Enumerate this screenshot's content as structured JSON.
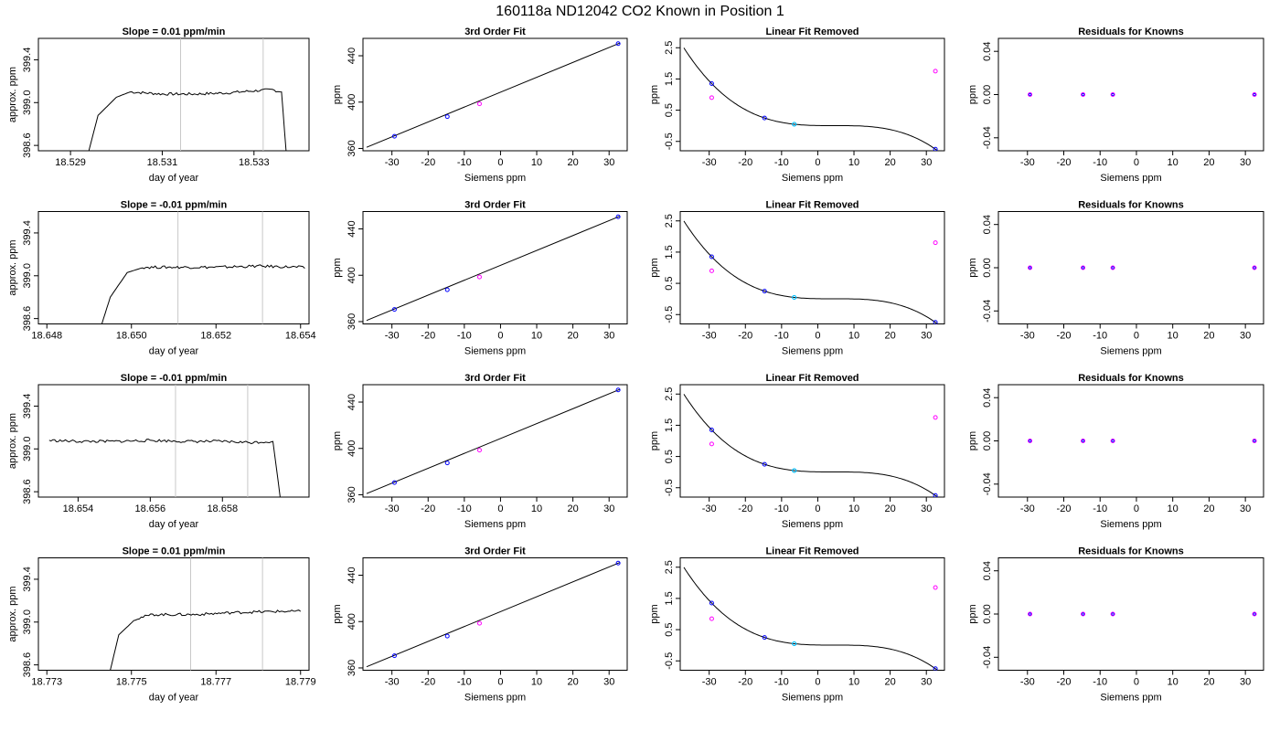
{
  "title": "160118a     ND12042   CO2 Known in Position  1",
  "colors": {
    "trace": "#000000",
    "knowns": "#0000ff",
    "selected": "#00bfff",
    "residual": "#ff00ff",
    "gridline": "#c8c8c8"
  },
  "chart_data": [
    {
      "row": 1,
      "time_series": {
        "type": "line",
        "title": "Slope =  0.01  ppm/min",
        "xlabel": "day of year",
        "ylabel": "approx. ppm",
        "xticks": [
          "18.529",
          "18.531",
          "18.533"
        ],
        "xtick_values": [
          18.529,
          18.531,
          18.533
        ],
        "yticks": [
          "398.6",
          "399.0",
          "399.4"
        ],
        "ytick_values": [
          398.6,
          399.0,
          399.4
        ],
        "xlim": [
          18.5283,
          18.5342
        ],
        "ylim": [
          398.55,
          399.6
        ],
        "vlines": [
          18.5314,
          18.5332
        ],
        "segments": [
          [
            18.5294,
            398.55
          ],
          [
            18.5296,
            398.88
          ],
          [
            18.53,
            399.05
          ],
          [
            18.5303,
            399.1
          ],
          [
            18.531,
            399.08
          ],
          [
            18.5317,
            399.08
          ],
          [
            18.5324,
            399.09
          ],
          [
            18.533,
            399.11
          ],
          [
            18.5334,
            399.12
          ],
          [
            18.5336,
            399.1
          ],
          [
            18.5337,
            398.55
          ]
        ]
      },
      "fit": {
        "type": "scatter",
        "title": "3rd Order Fit",
        "xlabel": "Siemens ppm",
        "ylabel": "ppm",
        "xticks": [
          "-30",
          "-20",
          "-10",
          "0",
          "10",
          "20",
          "30"
        ],
        "yticks": [
          "360",
          "400",
          "440"
        ],
        "xlim": [
          -38,
          35
        ],
        "ylim": [
          358,
          455
        ],
        "knowns": [
          [
            -29.3,
            370.5
          ],
          [
            -14.7,
            387.5
          ],
          [
            32.5,
            450.5
          ]
        ],
        "sample": [
          [
            -5.8,
            398.5
          ]
        ],
        "fit_line": [
          [
            -37,
            361
          ],
          [
            33,
            451
          ]
        ]
      },
      "linear_removed": {
        "type": "scatter",
        "title": "Linear Fit Removed",
        "xlabel": "Siemens ppm",
        "ylabel": "ppm",
        "xticks": [
          "-30",
          "-20",
          "-10",
          "0",
          "10",
          "20",
          "30"
        ],
        "yticks": [
          "-0.5",
          "0.5",
          "1.5",
          "2.5"
        ],
        "xlim": [
          -38,
          35
        ],
        "ylim": [
          -0.8,
          2.8
        ],
        "knowns": [
          [
            -29.3,
            1.35
          ],
          [
            -14.7,
            0.25
          ],
          [
            32.5,
            -0.75
          ]
        ],
        "sample": [
          [
            -6.5,
            0.05
          ]
        ],
        "residual": [
          [
            -29.3,
            0.9
          ],
          [
            32.5,
            1.75
          ]
        ],
        "curve_coef": [
          0.0,
          -0.002,
          0.0,
          -8e-05
        ]
      },
      "residuals": {
        "type": "scatter",
        "title": "Residuals for Knowns",
        "xlabel": "Siemens ppm",
        "ylabel": "ppm",
        "xticks": [
          "-30",
          "-20",
          "-10",
          "0",
          "10",
          "20",
          "30"
        ],
        "yticks": [
          "-0.04",
          "0.00",
          "0.04"
        ],
        "xlim": [
          -38,
          35
        ],
        "ylim": [
          -0.052,
          0.052
        ],
        "points": [
          [
            -29.3,
            0.0
          ],
          [
            -14.7,
            0.0
          ],
          [
            -6.5,
            0.0
          ],
          [
            32.5,
            0.0
          ]
        ]
      }
    },
    {
      "row": 2,
      "time_series": {
        "type": "line",
        "title": "Slope =  -0.01  ppm/min",
        "xlabel": "day of year",
        "ylabel": "approx. ppm",
        "xticks": [
          "18.648",
          "18.650",
          "18.652",
          "18.654"
        ],
        "xtick_values": [
          18.648,
          18.65,
          18.652,
          18.654
        ],
        "yticks": [
          "398.6",
          "399.0",
          "399.4"
        ],
        "ytick_values": [
          398.6,
          399.0,
          399.4
        ],
        "xlim": [
          18.6478,
          18.6542
        ],
        "ylim": [
          398.55,
          399.6
        ],
        "vlines": [
          18.6511,
          18.6531
        ],
        "segments": [
          [
            18.6493,
            398.55
          ],
          [
            18.6495,
            398.8
          ],
          [
            18.6499,
            399.03
          ],
          [
            18.6503,
            399.08
          ],
          [
            18.651,
            399.08
          ],
          [
            18.652,
            399.08
          ],
          [
            18.653,
            399.09
          ],
          [
            18.654,
            399.08
          ],
          [
            18.6541,
            399.07
          ]
        ]
      },
      "fit": {
        "type": "scatter",
        "title": "3rd Order Fit",
        "xlabel": "Siemens ppm",
        "ylabel": "ppm",
        "xticks": [
          "-30",
          "-20",
          "-10",
          "0",
          "10",
          "20",
          "30"
        ],
        "yticks": [
          "360",
          "400",
          "440"
        ],
        "xlim": [
          -38,
          35
        ],
        "ylim": [
          358,
          455
        ],
        "knowns": [
          [
            -29.3,
            370.5
          ],
          [
            -14.7,
            387.5
          ],
          [
            32.5,
            450.5
          ]
        ],
        "sample": [
          [
            -5.8,
            398.5
          ]
        ],
        "fit_line": [
          [
            -37,
            361
          ],
          [
            33,
            451
          ]
        ]
      },
      "linear_removed": {
        "type": "scatter",
        "title": "Linear Fit Removed",
        "xlabel": "Siemens ppm",
        "ylabel": "ppm",
        "xticks": [
          "-30",
          "-20",
          "-10",
          "0",
          "10",
          "20",
          "30"
        ],
        "yticks": [
          "-0.5",
          "0.5",
          "1.5",
          "2.5"
        ],
        "xlim": [
          -38,
          35
        ],
        "ylim": [
          -0.8,
          2.8
        ],
        "knowns": [
          [
            -29.3,
            1.35
          ],
          [
            -14.7,
            0.25
          ],
          [
            32.5,
            -0.75
          ]
        ],
        "sample": [
          [
            -6.5,
            0.05
          ]
        ],
        "residual": [
          [
            -29.3,
            0.9
          ],
          [
            32.5,
            1.8
          ]
        ],
        "curve_coef": [
          0.0,
          -0.002,
          0.0,
          -8e-05
        ]
      },
      "residuals": {
        "type": "scatter",
        "title": "Residuals for Knowns",
        "xlabel": "Siemens ppm",
        "ylabel": "ppm",
        "xticks": [
          "-30",
          "-20",
          "-10",
          "0",
          "10",
          "20",
          "30"
        ],
        "yticks": [
          "-0.04",
          "0.00",
          "0.04"
        ],
        "xlim": [
          -38,
          35
        ],
        "ylim": [
          -0.052,
          0.052
        ],
        "points": [
          [
            -29.3,
            0.0
          ],
          [
            -14.7,
            0.0
          ],
          [
            -6.5,
            0.0
          ],
          [
            32.5,
            0.0
          ]
        ]
      }
    },
    {
      "row": 3,
      "time_series": {
        "type": "line",
        "title": "Slope =  -0.01  ppm/min",
        "xlabel": "day of year",
        "ylabel": "approx. ppm",
        "xticks": [
          "18.654",
          "18.656",
          "18.658"
        ],
        "xtick_values": [
          18.654,
          18.656,
          18.658
        ],
        "yticks": [
          "398.6",
          "399.0",
          "399.4"
        ],
        "ytick_values": [
          398.6,
          399.0,
          399.4
        ],
        "xlim": [
          18.6529,
          18.6604
        ],
        "ylim": [
          398.55,
          399.6
        ],
        "vlines": [
          18.6567,
          18.6587
        ],
        "segments": [
          [
            18.6532,
            399.08
          ],
          [
            18.654,
            399.07
          ],
          [
            18.655,
            399.07
          ],
          [
            18.656,
            399.08
          ],
          [
            18.657,
            399.07
          ],
          [
            18.658,
            399.07
          ],
          [
            18.6588,
            399.06
          ],
          [
            18.6594,
            399.07
          ],
          [
            18.6596,
            398.55
          ]
        ]
      },
      "fit": {
        "type": "scatter",
        "title": "3rd Order Fit",
        "xlabel": "Siemens ppm",
        "ylabel": "ppm",
        "xticks": [
          "-30",
          "-20",
          "-10",
          "0",
          "10",
          "20",
          "30"
        ],
        "yticks": [
          "360",
          "400",
          "440"
        ],
        "xlim": [
          -38,
          35
        ],
        "ylim": [
          358,
          455
        ],
        "knowns": [
          [
            -29.3,
            370.5
          ],
          [
            -14.7,
            387.5
          ],
          [
            32.5,
            450.5
          ]
        ],
        "sample": [
          [
            -5.8,
            398.5
          ]
        ],
        "fit_line": [
          [
            -37,
            361
          ],
          [
            33,
            451
          ]
        ]
      },
      "linear_removed": {
        "type": "scatter",
        "title": "Linear Fit Removed",
        "xlabel": "Siemens ppm",
        "ylabel": "ppm",
        "xticks": [
          "-30",
          "-20",
          "-10",
          "0",
          "10",
          "20",
          "30"
        ],
        "yticks": [
          "-0.5",
          "0.5",
          "1.5",
          "2.5"
        ],
        "xlim": [
          -38,
          35
        ],
        "ylim": [
          -0.8,
          2.8
        ],
        "knowns": [
          [
            -29.3,
            1.35
          ],
          [
            -14.7,
            0.25
          ],
          [
            32.5,
            -0.75
          ]
        ],
        "sample": [
          [
            -6.5,
            0.05
          ]
        ],
        "residual": [
          [
            -29.3,
            0.9
          ],
          [
            32.5,
            1.75
          ]
        ],
        "curve_coef": [
          0.0,
          -0.002,
          0.0,
          -8e-05
        ]
      },
      "residuals": {
        "type": "scatter",
        "title": "Residuals for Knowns",
        "xlabel": "Siemens ppm",
        "ylabel": "ppm",
        "xticks": [
          "-30",
          "-20",
          "-10",
          "0",
          "10",
          "20",
          "30"
        ],
        "yticks": [
          "-0.04",
          "0.00",
          "0.04"
        ],
        "xlim": [
          -38,
          35
        ],
        "ylim": [
          -0.052,
          0.052
        ],
        "points": [
          [
            -29.3,
            0.0
          ],
          [
            -14.7,
            0.0
          ],
          [
            -6.5,
            0.0
          ],
          [
            32.5,
            0.0
          ]
        ]
      }
    },
    {
      "row": 4,
      "time_series": {
        "type": "line",
        "title": "Slope =  0.01  ppm/min",
        "xlabel": "day of year",
        "ylabel": "approx. ppm",
        "xticks": [
          "18.773",
          "18.775",
          "18.777",
          "18.779"
        ],
        "xtick_values": [
          18.773,
          18.775,
          18.777,
          18.779
        ],
        "yticks": [
          "398.6",
          "399.0",
          "399.4"
        ],
        "ytick_values": [
          398.6,
          399.0,
          399.4
        ],
        "xlim": [
          18.7728,
          18.7792
        ],
        "ylim": [
          398.55,
          399.6
        ],
        "vlines": [
          18.7764,
          18.7781
        ],
        "segments": [
          [
            18.7745,
            398.55
          ],
          [
            18.7747,
            398.88
          ],
          [
            18.7751,
            399.03
          ],
          [
            18.7755,
            399.07
          ],
          [
            18.7765,
            399.07
          ],
          [
            18.7775,
            399.09
          ],
          [
            18.7785,
            399.1
          ],
          [
            18.779,
            399.1
          ]
        ]
      },
      "fit": {
        "type": "scatter",
        "title": "3rd Order Fit",
        "xlabel": "Siemens ppm",
        "ylabel": "ppm",
        "xticks": [
          "-30",
          "-20",
          "-10",
          "0",
          "10",
          "20",
          "30"
        ],
        "yticks": [
          "360",
          "400",
          "440"
        ],
        "xlim": [
          -38,
          35
        ],
        "ylim": [
          358,
          455
        ],
        "knowns": [
          [
            -29.3,
            370.5
          ],
          [
            -14.7,
            387.5
          ],
          [
            32.5,
            450.5
          ]
        ],
        "sample": [
          [
            -5.8,
            398.5
          ]
        ],
        "fit_line": [
          [
            -37,
            361
          ],
          [
            33,
            451
          ]
        ]
      },
      "linear_removed": {
        "type": "scatter",
        "title": "Linear Fit Removed",
        "xlabel": "Siemens ppm",
        "ylabel": "ppm",
        "xticks": [
          "-30",
          "-20",
          "-10",
          "0",
          "10",
          "20",
          "30"
        ],
        "yticks": [
          "-0.5",
          "0.5",
          "1.5",
          "2.5"
        ],
        "xlim": [
          -38,
          35
        ],
        "ylim": [
          -0.8,
          2.8
        ],
        "knowns": [
          [
            -29.3,
            1.35
          ],
          [
            -14.7,
            0.25
          ],
          [
            32.5,
            -0.75
          ]
        ],
        "sample": [
          [
            -6.5,
            0.05
          ]
        ],
        "residual": [
          [
            -29.3,
            0.85
          ],
          [
            32.5,
            1.85
          ]
        ],
        "curve_coef": [
          0.0,
          -0.002,
          0.0,
          -8e-05
        ]
      },
      "residuals": {
        "type": "scatter",
        "title": "Residuals for Knowns",
        "xlabel": "Siemens ppm",
        "ylabel": "ppm",
        "xticks": [
          "-30",
          "-20",
          "-10",
          "0",
          "10",
          "20",
          "30"
        ],
        "yticks": [
          "-0.04",
          "0.00",
          "0.04"
        ],
        "xlim": [
          -38,
          35
        ],
        "ylim": [
          -0.052,
          0.052
        ],
        "points": [
          [
            -29.3,
            0.0
          ],
          [
            -14.7,
            0.0
          ],
          [
            -6.5,
            0.0
          ],
          [
            32.5,
            0.0
          ]
        ]
      }
    }
  ]
}
